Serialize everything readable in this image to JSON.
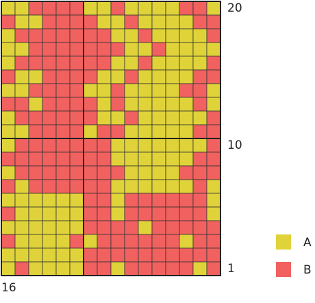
{
  "chart": {
    "rows": [
      [
        "A",
        "A",
        "B",
        "B",
        "B",
        "B",
        "A",
        "A",
        "B",
        "A",
        "A",
        "A",
        "A",
        "B",
        "B",
        "A"
      ],
      [
        "B",
        "A",
        "A",
        "B",
        "B",
        "B",
        "B",
        "A",
        "A",
        "B",
        "A",
        "A",
        "A",
        "A",
        "B",
        "B"
      ],
      [
        "A",
        "B",
        "B",
        "B",
        "B",
        "B",
        "B",
        "B",
        "A",
        "A",
        "B",
        "A",
        "A",
        "A",
        "A",
        "B"
      ],
      [
        "A",
        "A",
        "B",
        "B",
        "B",
        "B",
        "B",
        "B",
        "B",
        "A",
        "A",
        "B",
        "A",
        "A",
        "A",
        "A"
      ],
      [
        "A",
        "B",
        "B",
        "B",
        "B",
        "B",
        "B",
        "B",
        "A",
        "A",
        "B",
        "A",
        "A",
        "A",
        "A",
        "B"
      ],
      [
        "B",
        "A",
        "A",
        "B",
        "B",
        "B",
        "B",
        "A",
        "A",
        "B",
        "A",
        "A",
        "A",
        "A",
        "B",
        "B"
      ],
      [
        "A",
        "A",
        "B",
        "B",
        "B",
        "B",
        "A",
        "A",
        "B",
        "A",
        "A",
        "A",
        "A",
        "B",
        "B",
        "A"
      ],
      [
        "B",
        "B",
        "A",
        "B",
        "B",
        "B",
        "B",
        "A",
        "B",
        "A",
        "A",
        "A",
        "A",
        "A",
        "B",
        "A"
      ],
      [
        "A",
        "B",
        "B",
        "B",
        "B",
        "B",
        "B",
        "A",
        "A",
        "B",
        "A",
        "A",
        "A",
        "A",
        "A",
        "B"
      ],
      [
        "A",
        "A",
        "B",
        "B",
        "B",
        "B",
        "A",
        "B",
        "B",
        "A",
        "A",
        "A",
        "A",
        "A",
        "B",
        "B"
      ],
      [
        "A",
        "B",
        "B",
        "B",
        "B",
        "B",
        "B",
        "B",
        "A",
        "A",
        "A",
        "A",
        "A",
        "A",
        "A",
        "B"
      ],
      [
        "B",
        "B",
        "B",
        "B",
        "B",
        "B",
        "B",
        "B",
        "A",
        "A",
        "A",
        "A",
        "A",
        "A",
        "B",
        "B"
      ],
      [
        "A",
        "B",
        "B",
        "B",
        "B",
        "B",
        "B",
        "B",
        "B",
        "A",
        "A",
        "A",
        "A",
        "B",
        "B",
        "B"
      ],
      [
        "B",
        "A",
        "B",
        "B",
        "B",
        "B",
        "B",
        "B",
        "A",
        "A",
        "A",
        "A",
        "A",
        "A",
        "B",
        "A"
      ],
      [
        "A",
        "A",
        "A",
        "A",
        "A",
        "A",
        "B",
        "B",
        "A",
        "B",
        "B",
        "B",
        "B",
        "B",
        "B",
        "A"
      ],
      [
        "B",
        "A",
        "A",
        "A",
        "A",
        "A",
        "B",
        "B",
        "A",
        "B",
        "B",
        "B",
        "B",
        "B",
        "B",
        "A"
      ],
      [
        "A",
        "A",
        "A",
        "A",
        "A",
        "A",
        "B",
        "B",
        "B",
        "B",
        "A",
        "B",
        "B",
        "B",
        "B",
        "B"
      ],
      [
        "B",
        "A",
        "A",
        "A",
        "A",
        "B",
        "A",
        "B",
        "B",
        "B",
        "B",
        "B",
        "B",
        "A",
        "B",
        "B"
      ],
      [
        "A",
        "A",
        "A",
        "A",
        "A",
        "A",
        "B",
        "B",
        "B",
        "B",
        "B",
        "B",
        "B",
        "B",
        "B",
        "B"
      ],
      [
        "A",
        "B",
        "A",
        "A",
        "A",
        "A",
        "B",
        "B",
        "A",
        "B",
        "B",
        "B",
        "B",
        "B",
        "A",
        "B"
      ]
    ],
    "row_numbers": [
      20,
      10,
      1
    ],
    "column_numbers": [
      16
    ],
    "legend": [
      {
        "key": "A",
        "label": "A",
        "color": "#e0d33a"
      },
      {
        "key": "B",
        "label": "B",
        "color": "#f0615f"
      }
    ]
  }
}
